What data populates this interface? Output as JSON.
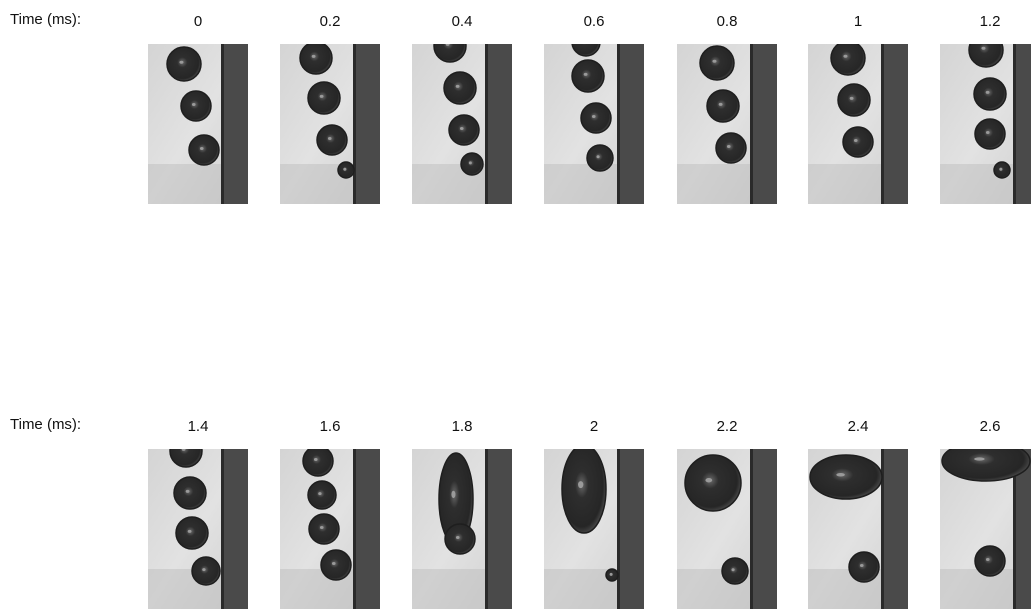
{
  "rows": [
    {
      "label": "Time (ms):",
      "times": [
        "0",
        "0.2",
        "0.4",
        "0.6",
        "0.8",
        "1",
        "1.2"
      ]
    },
    {
      "label": "Time (ms):",
      "times": [
        "1.4",
        "1.6",
        "1.8",
        "2",
        "2.2",
        "2.4",
        "2.6"
      ]
    }
  ]
}
